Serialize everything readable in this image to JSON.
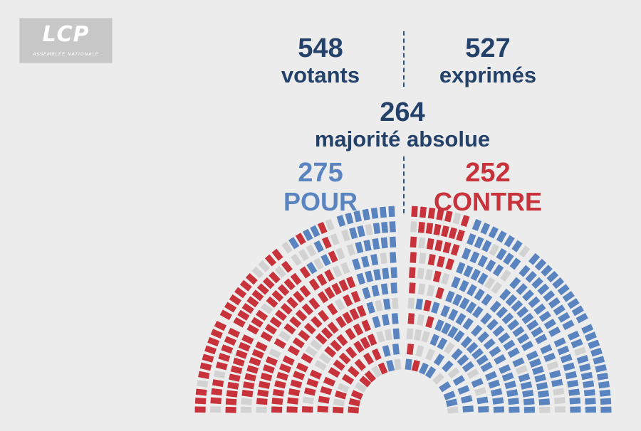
{
  "logo": {
    "title": "LCP",
    "subtitle": "ASSEMBLÉE NATIONALE"
  },
  "stats": {
    "votants": {
      "value": "548",
      "label": "votants"
    },
    "exprimes": {
      "value": "527",
      "label": "exprimés"
    },
    "majorite": {
      "value": "264",
      "label": "majorité absolue"
    },
    "pour": {
      "value": "275",
      "label": "POUR"
    },
    "contre": {
      "value": "252",
      "label": "CONTRE"
    }
  },
  "colors": {
    "background": "#ececec",
    "navy": "#24416a",
    "pour": "#5a84c0",
    "contre": "#c8323a",
    "absent": "#d2d2d2"
  },
  "chart_data": {
    "type": "hemicycle",
    "title": "",
    "series": [
      {
        "name": "POUR",
        "values": [
          275
        ]
      },
      {
        "name": "CONTRE",
        "values": [
          252
        ]
      }
    ]
  }
}
